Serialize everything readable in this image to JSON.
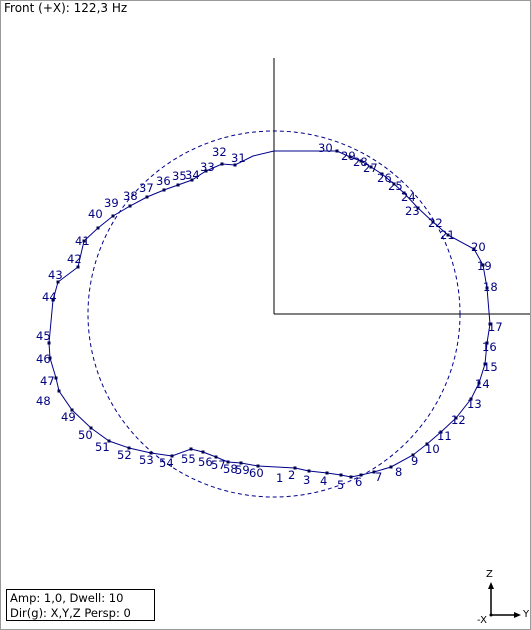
{
  "view": {
    "title": "Front (+X): 122,3 Hz",
    "info_line1": "Amp: 1,0,  Dwell: 10",
    "info_line2": "Dir(g): X,Y,Z Persp: 0"
  },
  "colors": {
    "mode_shape": "#00008b",
    "points": "#00004d",
    "axes": "#000000",
    "border": "#9a9a9a"
  },
  "triad": {
    "axis_z": "Z",
    "axis_y": "Y",
    "axis_x": "-X"
  },
  "point_labels": [
    "1",
    "2",
    "3",
    "4",
    "5",
    "6",
    "7",
    "8",
    "9",
    "10",
    "11",
    "12",
    "13",
    "14",
    "15",
    "16",
    "17",
    "18",
    "19",
    "20",
    "21",
    "22",
    "23",
    "24",
    "25",
    "26",
    "27",
    "28",
    "29",
    "30",
    "31",
    "32",
    "33",
    "34",
    "35",
    "36",
    "37",
    "38",
    "39",
    "40",
    "41",
    "42",
    "43",
    "44",
    "45",
    "46",
    "47",
    "48",
    "49",
    "50",
    "51",
    "52",
    "53",
    "54",
    "55",
    "56",
    "57",
    "58",
    "59",
    "60"
  ]
}
